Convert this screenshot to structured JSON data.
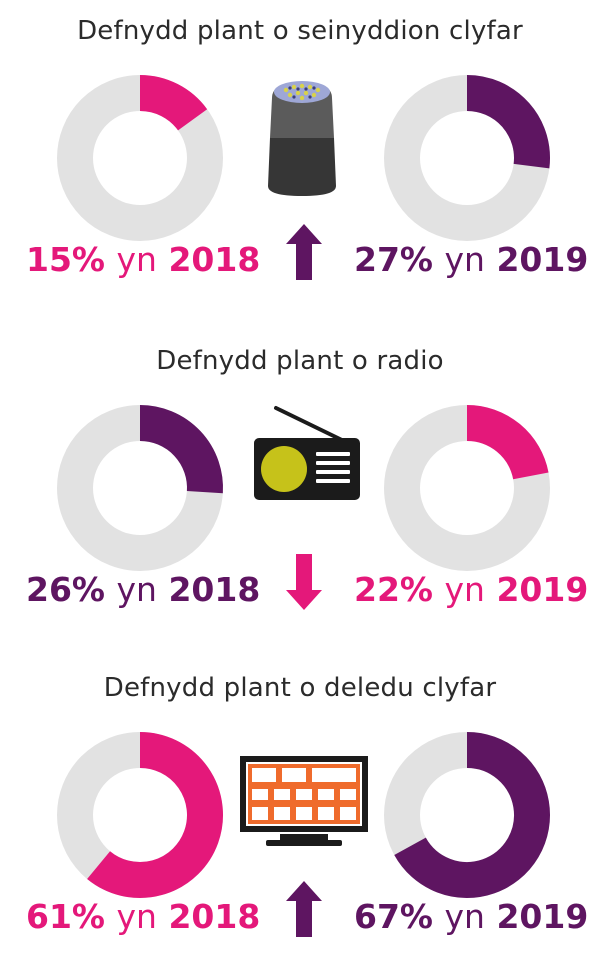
{
  "colors": {
    "pink": "#e4187a",
    "purple": "#5e1561",
    "track": "#e2e2e2"
  },
  "chart_data": [
    {
      "type": "donut",
      "title": "Defnydd plant o seinyddion clyfar",
      "icon": "smart-speaker-icon",
      "trend": "up",
      "trend_color": "purple",
      "items": [
        {
          "year": "2018",
          "value": 15,
          "color": "pink",
          "prefix": "15%",
          "word": "yn",
          "year_label": "2018"
        },
        {
          "year": "2019",
          "value": 27,
          "color": "purple",
          "prefix": "27%",
          "word": "yn",
          "year_label": "2019"
        }
      ]
    },
    {
      "type": "donut",
      "title": "Defnydd plant o radio",
      "icon": "radio-icon",
      "trend": "down",
      "trend_color": "pink",
      "items": [
        {
          "year": "2018",
          "value": 26,
          "color": "purple",
          "prefix": "26%",
          "word": "yn",
          "year_label": "2018"
        },
        {
          "year": "2019",
          "value": 22,
          "color": "pink",
          "prefix": "22%",
          "word": "yn",
          "year_label": "2019"
        }
      ]
    },
    {
      "type": "donut",
      "title": "Defnydd plant o deledu clyfar",
      "icon": "smart-tv-icon",
      "trend": "up",
      "trend_color": "purple",
      "items": [
        {
          "year": "2018",
          "value": 61,
          "color": "pink",
          "prefix": "61%",
          "word": "yn",
          "year_label": "2018"
        },
        {
          "year": "2019",
          "value": 67,
          "color": "purple",
          "prefix": "67%",
          "word": "yn",
          "year_label": "2019"
        }
      ]
    }
  ]
}
